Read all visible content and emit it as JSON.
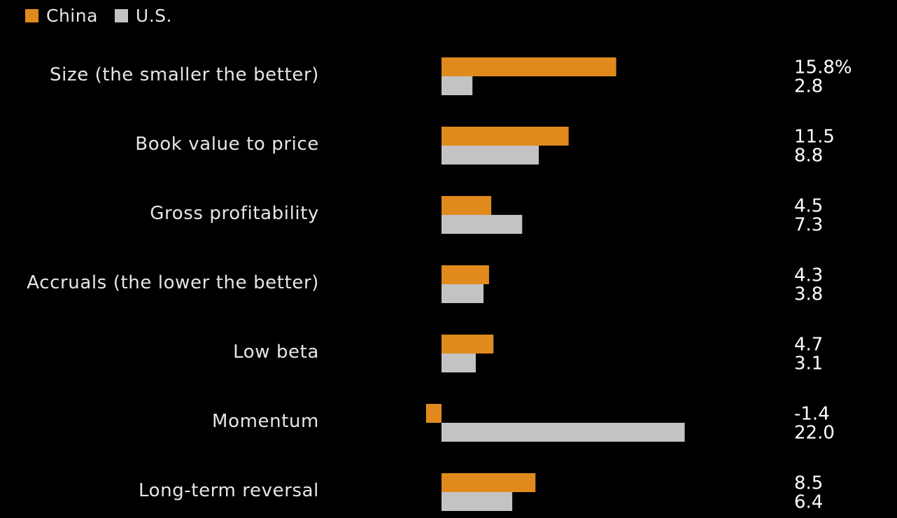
{
  "chart_data": {
    "type": "bar",
    "orientation": "horizontal",
    "categories": [
      "Size (the smaller the better)",
      "Book value to price",
      "Gross profitability",
      "Accruals (the lower the better)",
      "Low beta",
      "Momentum",
      "Long-term reversal"
    ],
    "series": [
      {
        "name": "China",
        "color": "#e08a1e",
        "values": [
          15.8,
          11.5,
          4.5,
          4.3,
          4.7,
          -1.4,
          8.5
        ],
        "labels": [
          "15.8%",
          "11.5",
          "4.5",
          "4.3",
          "4.7",
          "-1.4",
          "8.5"
        ]
      },
      {
        "name": "U.S.",
        "color": "#c3c3c3",
        "values": [
          2.8,
          8.8,
          7.3,
          3.8,
          3.1,
          22.0,
          6.4
        ],
        "labels": [
          "2.8",
          "8.8",
          "7.3",
          "3.8",
          "3.1",
          "22.0",
          "6.4"
        ]
      }
    ],
    "legend_position": "top-left",
    "grid": false
  },
  "legend": {
    "items": [
      {
        "label": "China",
        "color": "#e08a1e"
      },
      {
        "label": "U.S.",
        "color": "#c3c3c3"
      }
    ]
  }
}
